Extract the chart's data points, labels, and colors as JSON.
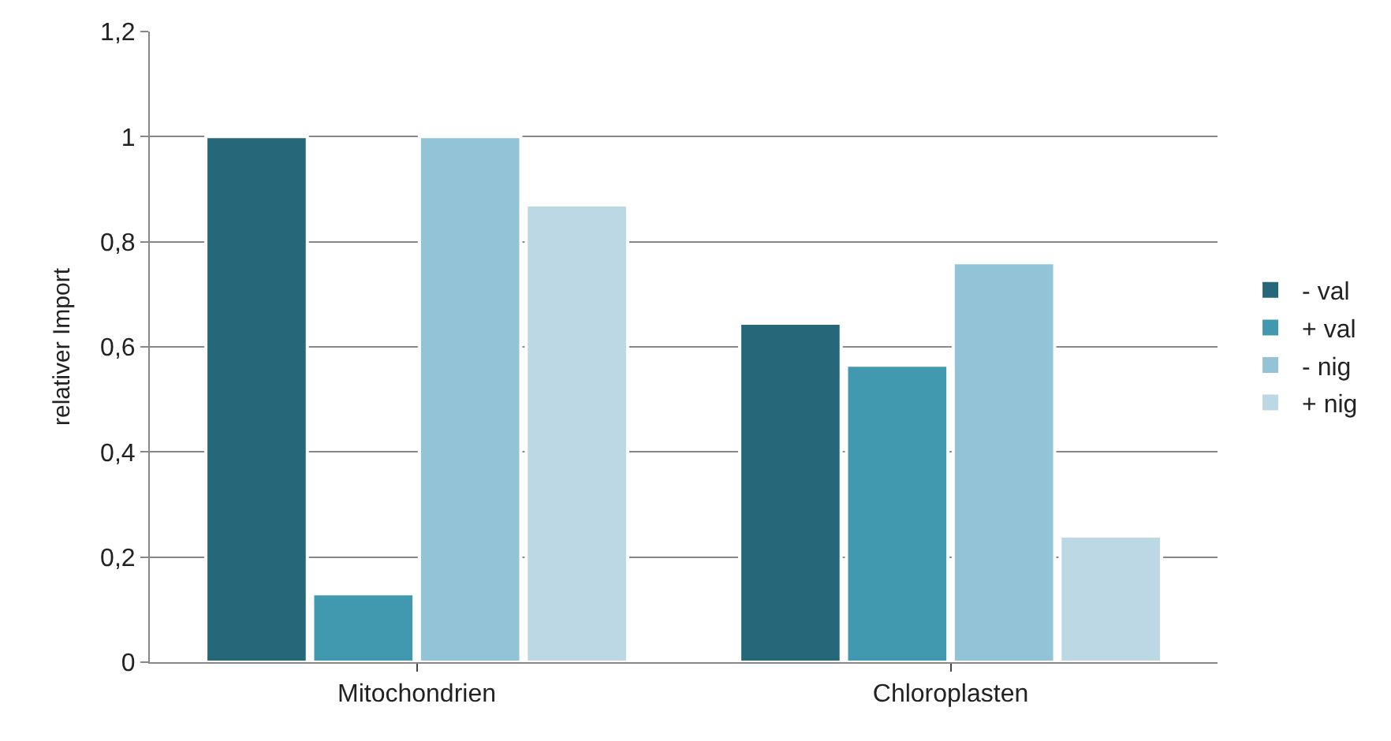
{
  "chart_data": {
    "type": "bar",
    "ylabel": "relativer Import",
    "categories": [
      "Mitochondrien",
      "Chloroplasten"
    ],
    "series": [
      {
        "name": "- val",
        "color": "#26687a",
        "values": [
          1.0,
          0.645
        ]
      },
      {
        "name": "+ val",
        "color": "#4199b0",
        "values": [
          0.13,
          0.565
        ]
      },
      {
        "name": "- nig",
        "color": "#92c3d6",
        "values": [
          1.0,
          0.76
        ]
      },
      {
        "name": "+ nig",
        "color": "#bcd8e4",
        "values": [
          0.87,
          0.24
        ]
      }
    ],
    "ylim": [
      0,
      1.2
    ],
    "yticks": [
      0,
      {
        "value": 0.2,
        "label": "0,2"
      },
      {
        "value": 0.4,
        "label": "0,4"
      },
      {
        "value": 0.6,
        "label": "0,6"
      },
      {
        "value": 0.8,
        "label": "0,8"
      },
      1,
      {
        "value": 1.2,
        "label": "1,2"
      }
    ],
    "grid": "y",
    "legend": "right"
  }
}
